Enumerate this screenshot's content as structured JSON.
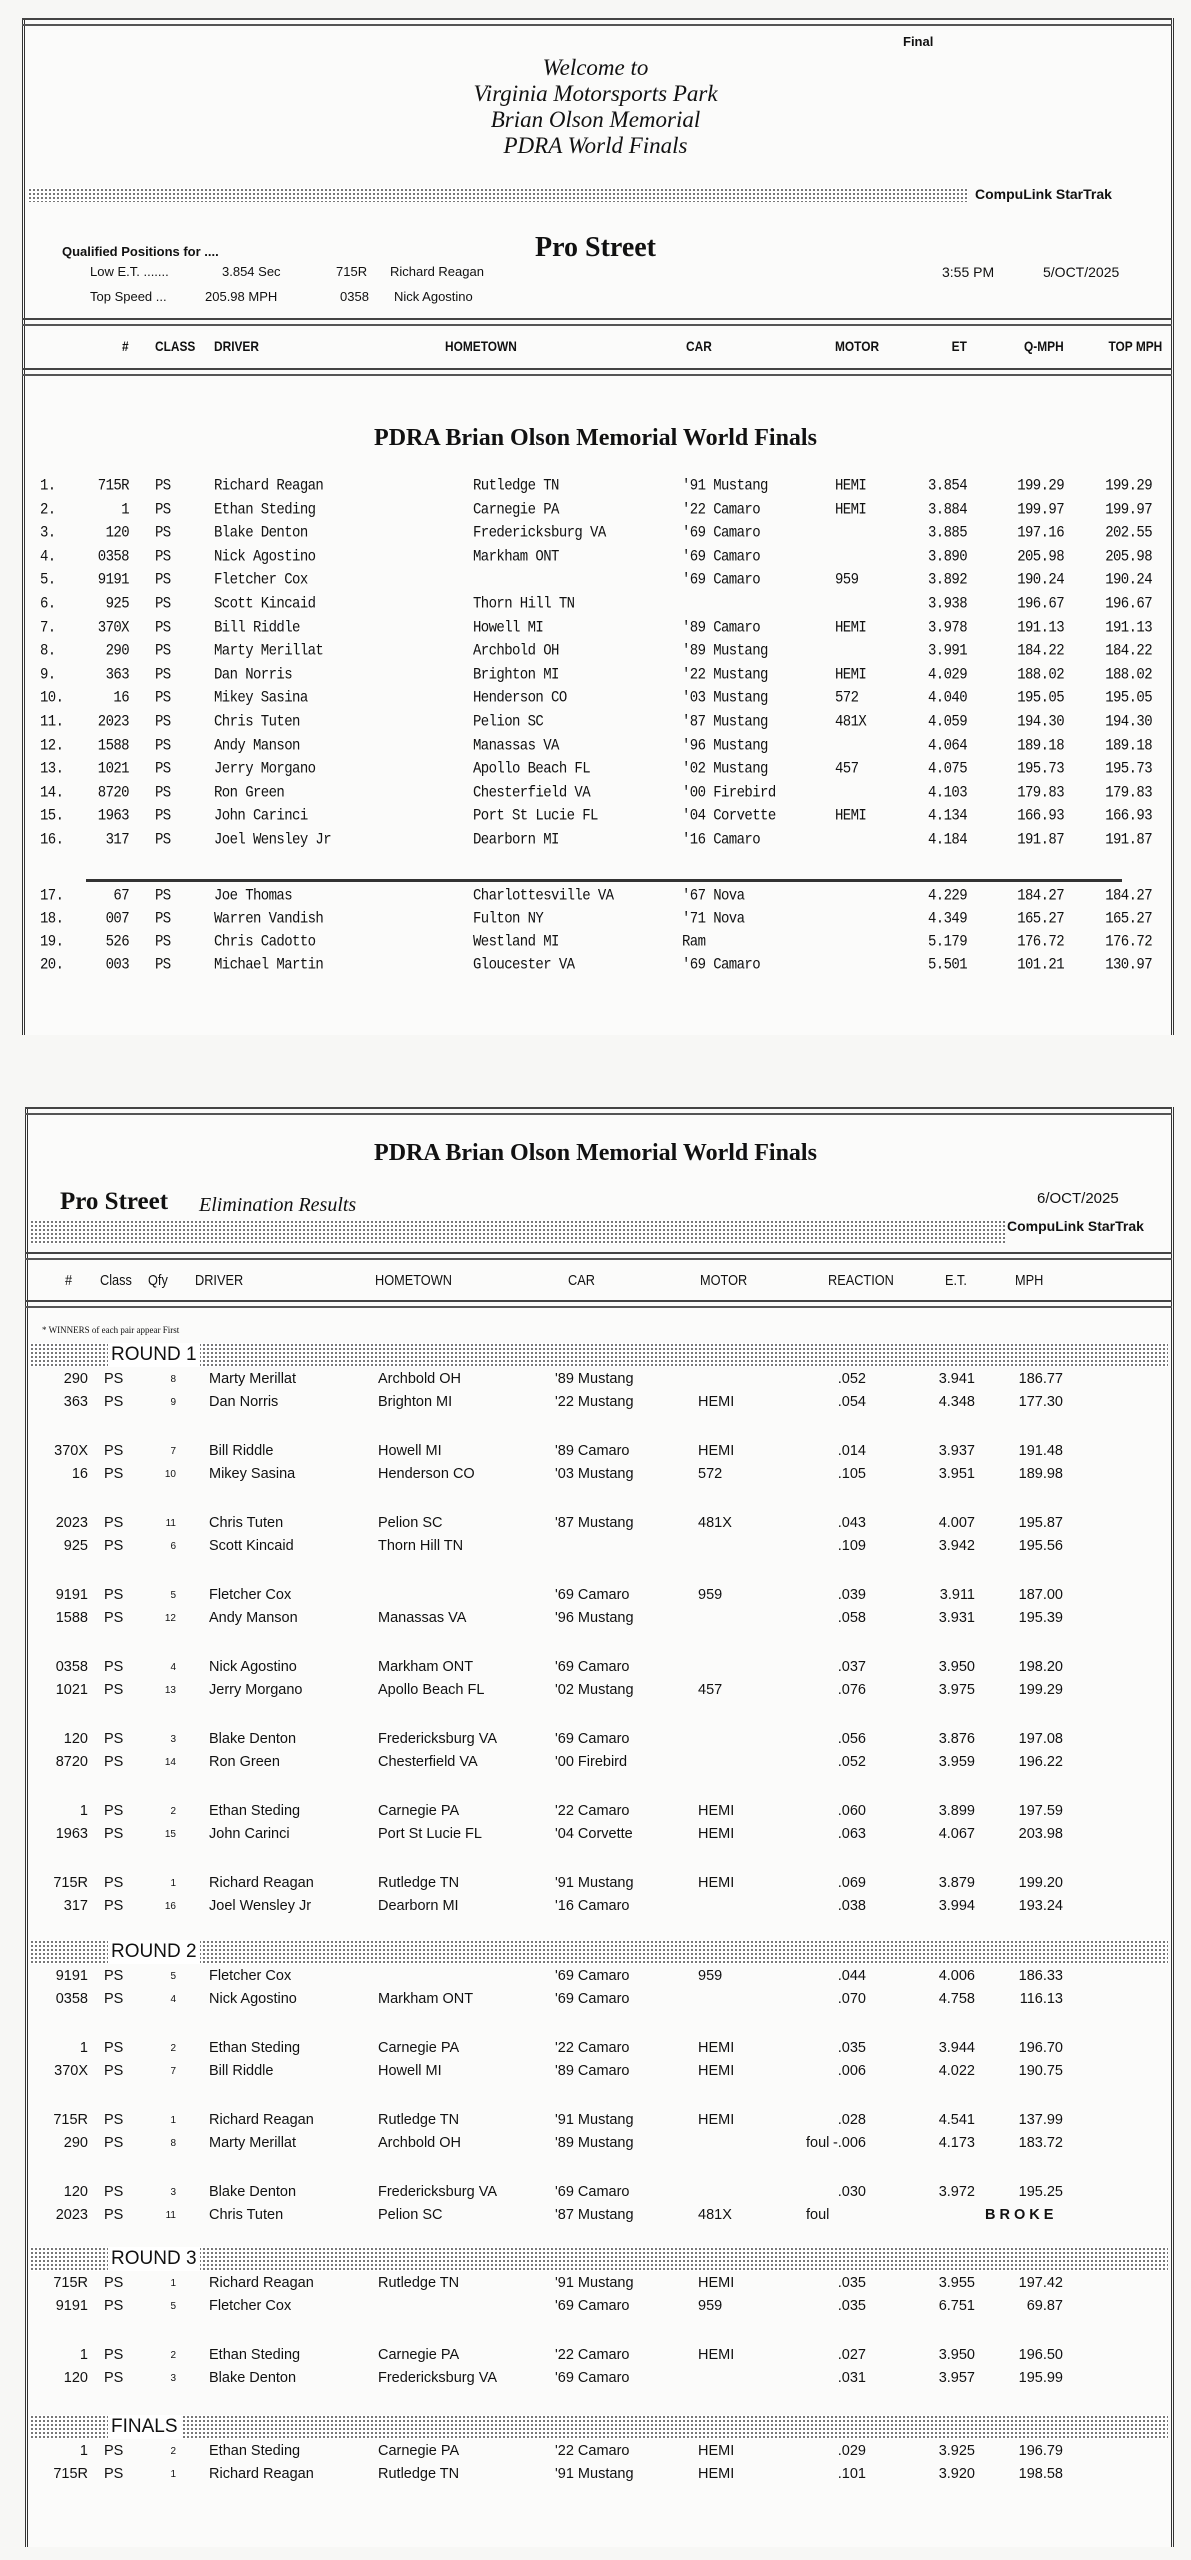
{
  "qualifying": {
    "status": "Final",
    "welcome_lines": [
      "Welcome to",
      "Virginia Motorsports Park",
      "Brian Olson Memorial",
      "PDRA World Finals"
    ],
    "software": "CompuLink  StarTrak",
    "class_title": "Pro Street",
    "qualified_label": "Qualified Positions for ....",
    "low_et": {
      "label": "Low E.T. .......",
      "value": "3.854 Sec",
      "num": "715R",
      "driver": "Richard Reagan"
    },
    "top_speed": {
      "label": "Top Speed ...",
      "value": "205.98 MPH",
      "num": "0358",
      "driver": "Nick Agostino"
    },
    "time": "3:55 PM",
    "date": "5/OCT/2025",
    "columns": [
      "#",
      "CLASS",
      "DRIVER",
      "HOMETOWN",
      "CAR",
      "MOTOR",
      "ET",
      "Q-MPH",
      "TOP MPH"
    ],
    "event_title": "PDRA Brian Olson Memorial World Finals",
    "rows": [
      {
        "pos": "1.",
        "num": "715R",
        "cls": "PS",
        "driver": "Richard Reagan",
        "hometown": "Rutledge  TN",
        "car": "'91 Mustang",
        "motor": "HEMI",
        "et": "3.854",
        "qmph": "199.29",
        "top": "199.29"
      },
      {
        "pos": "2.",
        "num": "1",
        "cls": "PS",
        "driver": "Ethan Steding",
        "hometown": "Carnegie  PA",
        "car": "'22 Camaro",
        "motor": "HEMI",
        "et": "3.884",
        "qmph": "199.97",
        "top": "199.97"
      },
      {
        "pos": "3.",
        "num": "120",
        "cls": "PS",
        "driver": "Blake Denton",
        "hometown": "Fredericksburg  VA",
        "car": "'69 Camaro",
        "motor": "",
        "et": "3.885",
        "qmph": "197.16",
        "top": "202.55"
      },
      {
        "pos": "4.",
        "num": "0358",
        "cls": "PS",
        "driver": "Nick Agostino",
        "hometown": "Markham  ONT",
        "car": "'69 Camaro",
        "motor": "",
        "et": "3.890",
        "qmph": "205.98",
        "top": "205.98"
      },
      {
        "pos": "5.",
        "num": "9191",
        "cls": "PS",
        "driver": "Fletcher Cox",
        "hometown": "",
        "car": "'69 Camaro",
        "motor": "959",
        "et": "3.892",
        "qmph": "190.24",
        "top": "190.24"
      },
      {
        "pos": "6.",
        "num": "925",
        "cls": "PS",
        "driver": "Scott Kincaid",
        "hometown": "Thorn Hill  TN",
        "car": "",
        "motor": "",
        "et": "3.938",
        "qmph": "196.67",
        "top": "196.67"
      },
      {
        "pos": "7.",
        "num": "370X",
        "cls": "PS",
        "driver": "Bill Riddle",
        "hometown": "Howell  MI",
        "car": "'89 Camaro",
        "motor": "HEMI",
        "et": "3.978",
        "qmph": "191.13",
        "top": "191.13"
      },
      {
        "pos": "8.",
        "num": "290",
        "cls": "PS",
        "driver": "Marty Merillat",
        "hometown": "Archbold  OH",
        "car": "'89 Mustang",
        "motor": "",
        "et": "3.991",
        "qmph": "184.22",
        "top": "184.22"
      },
      {
        "pos": "9.",
        "num": "363",
        "cls": "PS",
        "driver": "Dan Norris",
        "hometown": "Brighton  MI",
        "car": "'22 Mustang",
        "motor": "HEMI",
        "et": "4.029",
        "qmph": "188.02",
        "top": "188.02"
      },
      {
        "pos": "10.",
        "num": "16",
        "cls": "PS",
        "driver": "Mikey Sasina",
        "hometown": "Henderson  CO",
        "car": "'03 Mustang",
        "motor": "572",
        "et": "4.040",
        "qmph": "195.05",
        "top": "195.05"
      },
      {
        "pos": "11.",
        "num": "2023",
        "cls": "PS",
        "driver": "Chris Tuten",
        "hometown": "Pelion  SC",
        "car": "'87 Mustang",
        "motor": "481X",
        "et": "4.059",
        "qmph": "194.30",
        "top": "194.30"
      },
      {
        "pos": "12.",
        "num": "1588",
        "cls": "PS",
        "driver": "Andy Manson",
        "hometown": "Manassas  VA",
        "car": "'96 Mustang",
        "motor": "",
        "et": "4.064",
        "qmph": "189.18",
        "top": "189.18"
      },
      {
        "pos": "13.",
        "num": "1021",
        "cls": "PS",
        "driver": "Jerry Morgano",
        "hometown": "Apollo Beach  FL",
        "car": "'02 Mustang",
        "motor": "457",
        "et": "4.075",
        "qmph": "195.73",
        "top": "195.73"
      },
      {
        "pos": "14.",
        "num": "8720",
        "cls": "PS",
        "driver": "Ron Green",
        "hometown": "Chesterfield  VA",
        "car": "'00 Firebird",
        "motor": "",
        "et": "4.103",
        "qmph": "179.83",
        "top": "179.83"
      },
      {
        "pos": "15.",
        "num": "1963",
        "cls": "PS",
        "driver": "John Carinci",
        "hometown": "Port St Lucie  FL",
        "car": "'04 Corvette",
        "motor": "HEMI",
        "et": "4.134",
        "qmph": "166.93",
        "top": "166.93"
      },
      {
        "pos": "16.",
        "num": "317",
        "cls": "PS",
        "driver": "Joel Wensley Jr",
        "hometown": "Dearborn  MI",
        "car": "'16 Camaro",
        "motor": "",
        "et": "4.184",
        "qmph": "191.87",
        "top": "191.87"
      },
      {
        "pos": "17.",
        "num": "67",
        "cls": "PS",
        "driver": "Joe Thomas",
        "hometown": "Charlottesville  VA",
        "car": "'67 Nova",
        "motor": "",
        "et": "4.229",
        "qmph": "184.27",
        "top": "184.27"
      },
      {
        "pos": "18.",
        "num": "007",
        "cls": "PS",
        "driver": "Warren Vandish",
        "hometown": "Fulton  NY",
        "car": "'71 Nova",
        "motor": "",
        "et": "4.349",
        "qmph": "165.27",
        "top": "165.27"
      },
      {
        "pos": "19.",
        "num": "526",
        "cls": "PS",
        "driver": "Chris Cadotto",
        "hometown": "Westland  MI",
        "car": "Ram",
        "motor": "",
        "et": "5.179",
        "qmph": "176.72",
        "top": "176.72"
      },
      {
        "pos": "20.",
        "num": "003",
        "cls": "PS",
        "driver": "Michael Martin",
        "hometown": "Gloucester  VA",
        "car": "'69 Camaro",
        "motor": "",
        "et": "5.501",
        "qmph": "101.21",
        "top": "130.97"
      }
    ]
  },
  "eliminations": {
    "event_title": "PDRA Brian Olson Memorial World Finals",
    "class_title": "Pro Street",
    "subtitle": "Elimination Results",
    "date": "6/OCT/2025",
    "software": "CompuLink  StarTrak",
    "columns": [
      "#",
      "Class",
      "Qfy",
      "DRIVER",
      "HOMETOWN",
      "CAR",
      "MOTOR",
      "REACTION",
      "E.T.",
      "MPH"
    ],
    "note": "* WINNERS of each pair appear First",
    "rounds": [
      {
        "label": "ROUND 1",
        "pairs": [
          [
            {
              "num": "290",
              "cls": "PS",
              "qfy": "8",
              "driver": "Marty Merillat",
              "hometown": "Archbold OH",
              "car": "'89 Mustang",
              "motor": "",
              "foul": "",
              "rt": ".052",
              "et": "3.941",
              "mph": "186.77"
            },
            {
              "num": "363",
              "cls": "PS",
              "qfy": "9",
              "driver": "Dan Norris",
              "hometown": "Brighton  MI",
              "car": "'22 Mustang",
              "motor": "HEMI",
              "foul": "",
              "rt": ".054",
              "et": "4.348",
              "mph": "177.30"
            }
          ],
          [
            {
              "num": "370X",
              "cls": "PS",
              "qfy": "7",
              "driver": "Bill Riddle",
              "hometown": "Howell  MI",
              "car": "'89 Camaro",
              "motor": "HEMI",
              "foul": "",
              "rt": ".014",
              "et": "3.937",
              "mph": "191.48"
            },
            {
              "num": "16",
              "cls": "PS",
              "qfy": "10",
              "driver": "Mikey Sasina",
              "hometown": "Henderson CO",
              "car": "'03 Mustang",
              "motor": "572",
              "foul": "",
              "rt": ".105",
              "et": "3.951",
              "mph": "189.98"
            }
          ],
          [
            {
              "num": "2023",
              "cls": "PS",
              "qfy": "11",
              "driver": "Chris Tuten",
              "hometown": "Pelion  SC",
              "car": "'87 Mustang",
              "motor": "481X",
              "foul": "",
              "rt": ".043",
              "et": "4.007",
              "mph": "195.87"
            },
            {
              "num": "925",
              "cls": "PS",
              "qfy": "6",
              "driver": "Scott Kincaid",
              "hometown": "Thorn Hill  TN",
              "car": "",
              "motor": "",
              "foul": "",
              "rt": ".109",
              "et": "3.942",
              "mph": "195.56"
            }
          ],
          [
            {
              "num": "9191",
              "cls": "PS",
              "qfy": "5",
              "driver": "Fletcher Cox",
              "hometown": "",
              "car": "'69 Camaro",
              "motor": "959",
              "foul": "",
              "rt": ".039",
              "et": "3.911",
              "mph": "187.00"
            },
            {
              "num": "1588",
              "cls": "PS",
              "qfy": "12",
              "driver": "Andy Manson",
              "hometown": "Manassas  VA",
              "car": "'96 Mustang",
              "motor": "",
              "foul": "",
              "rt": ".058",
              "et": "3.931",
              "mph": "195.39"
            }
          ],
          [
            {
              "num": "0358",
              "cls": "PS",
              "qfy": "4",
              "driver": "Nick Agostino",
              "hometown": "Markham  ONT",
              "car": "'69 Camaro",
              "motor": "",
              "foul": "",
              "rt": ".037",
              "et": "3.950",
              "mph": "198.20"
            },
            {
              "num": "1021",
              "cls": "PS",
              "qfy": "13",
              "driver": "Jerry Morgano",
              "hometown": "Apollo Beach  FL",
              "car": "'02 Mustang",
              "motor": "457",
              "foul": "",
              "rt": ".076",
              "et": "3.975",
              "mph": "199.29"
            }
          ],
          [
            {
              "num": "120",
              "cls": "PS",
              "qfy": "3",
              "driver": "Blake Denton",
              "hometown": "Fredericksburg  VA",
              "car": "'69 Camaro",
              "motor": "",
              "foul": "",
              "rt": ".056",
              "et": "3.876",
              "mph": "197.08"
            },
            {
              "num": "8720",
              "cls": "PS",
              "qfy": "14",
              "driver": "Ron Green",
              "hometown": "Chesterfield  VA",
              "car": "'00 Firebird",
              "motor": "",
              "foul": "",
              "rt": ".052",
              "et": "3.959",
              "mph": "196.22"
            }
          ],
          [
            {
              "num": "1",
              "cls": "PS",
              "qfy": "2",
              "driver": "Ethan Steding",
              "hometown": "Carnegie  PA",
              "car": "'22 Camaro",
              "motor": "HEMI",
              "foul": "",
              "rt": ".060",
              "et": "3.899",
              "mph": "197.59"
            },
            {
              "num": "1963",
              "cls": "PS",
              "qfy": "15",
              "driver": "John Carinci",
              "hometown": "Port St Lucie  FL",
              "car": "'04 Corvette",
              "motor": "HEMI",
              "foul": "",
              "rt": ".063",
              "et": "4.067",
              "mph": "203.98"
            }
          ],
          [
            {
              "num": "715R",
              "cls": "PS",
              "qfy": "1",
              "driver": "Richard Reagan",
              "hometown": "Rutledge  TN",
              "car": "'91 Mustang",
              "motor": "HEMI",
              "foul": "",
              "rt": ".069",
              "et": "3.879",
              "mph": "199.20"
            },
            {
              "num": "317",
              "cls": "PS",
              "qfy": "16",
              "driver": "Joel Wensley Jr",
              "hometown": "Dearborn  MI",
              "car": "'16 Camaro",
              "motor": "",
              "foul": "",
              "rt": ".038",
              "et": "3.994",
              "mph": "193.24"
            }
          ]
        ]
      },
      {
        "label": "ROUND 2",
        "pairs": [
          [
            {
              "num": "9191",
              "cls": "PS",
              "qfy": "5",
              "driver": "Fletcher Cox",
              "hometown": "",
              "car": "'69 Camaro",
              "motor": "959",
              "foul": "",
              "rt": ".044",
              "et": "4.006",
              "mph": "186.33"
            },
            {
              "num": "0358",
              "cls": "PS",
              "qfy": "4",
              "driver": "Nick Agostino",
              "hometown": "Markham  ONT",
              "car": "'69 Camaro",
              "motor": "",
              "foul": "",
              "rt": ".070",
              "et": "4.758",
              "mph": "116.13"
            }
          ],
          [
            {
              "num": "1",
              "cls": "PS",
              "qfy": "2",
              "driver": "Ethan Steding",
              "hometown": "Carnegie  PA",
              "car": "'22 Camaro",
              "motor": "HEMI",
              "foul": "",
              "rt": ".035",
              "et": "3.944",
              "mph": "196.70"
            },
            {
              "num": "370X",
              "cls": "PS",
              "qfy": "7",
              "driver": "Bill Riddle",
              "hometown": "Howell  MI",
              "car": "'89 Camaro",
              "motor": "HEMI",
              "foul": "",
              "rt": ".006",
              "et": "4.022",
              "mph": "190.75"
            }
          ],
          [
            {
              "num": "715R",
              "cls": "PS",
              "qfy": "1",
              "driver": "Richard Reagan",
              "hometown": "Rutledge  TN",
              "car": "'91 Mustang",
              "motor": "HEMI",
              "foul": "",
              "rt": ".028",
              "et": "4.541",
              "mph": "137.99"
            },
            {
              "num": "290",
              "cls": "PS",
              "qfy": "8",
              "driver": "Marty Merillat",
              "hometown": "Archbold  OH",
              "car": "'89 Mustang",
              "motor": "",
              "foul": "foul",
              "rt": "-.006",
              "et": "4.173",
              "mph": "183.72"
            }
          ],
          [
            {
              "num": "120",
              "cls": "PS",
              "qfy": "3",
              "driver": "Blake Denton",
              "hometown": "Fredericksburg  VA",
              "car": "'69 Camaro",
              "motor": "",
              "foul": "",
              "rt": ".030",
              "et": "3.972",
              "mph": "195.25"
            },
            {
              "num": "2023",
              "cls": "PS",
              "qfy": "11",
              "driver": "Chris Tuten",
              "hometown": "Pelion  SC",
              "car": "'87 Mustang",
              "motor": "481X",
              "foul": "foul",
              "rt": "",
              "et": "",
              "mph": "",
              "result": "B R O K E"
            }
          ]
        ]
      },
      {
        "label": "ROUND 3",
        "pairs": [
          [
            {
              "num": "715R",
              "cls": "PS",
              "qfy": "1",
              "driver": "Richard Reagan",
              "hometown": "Rutledge  TN",
              "car": "'91 Mustang",
              "motor": "HEMI",
              "foul": "",
              "rt": ".035",
              "et": "3.955",
              "mph": "197.42"
            },
            {
              "num": "9191",
              "cls": "PS",
              "qfy": "5",
              "driver": "Fletcher Cox",
              "hometown": "",
              "car": "'69 Camaro",
              "motor": "959",
              "foul": "",
              "rt": ".035",
              "et": "6.751",
              "mph": "69.87"
            }
          ],
          [
            {
              "num": "1",
              "cls": "PS",
              "qfy": "2",
              "driver": "Ethan Steding",
              "hometown": "Carnegie  PA",
              "car": "'22 Camaro",
              "motor": "HEMI",
              "foul": "",
              "rt": ".027",
              "et": "3.950",
              "mph": "196.50"
            },
            {
              "num": "120",
              "cls": "PS",
              "qfy": "3",
              "driver": "Blake Denton",
              "hometown": "Fredericksburg  VA",
              "car": "'69 Camaro",
              "motor": "",
              "foul": "",
              "rt": ".031",
              "et": "3.957",
              "mph": "195.99"
            }
          ]
        ]
      },
      {
        "label": "FINALS",
        "pairs": [
          [
            {
              "num": "1",
              "cls": "PS",
              "qfy": "2",
              "driver": "Ethan Steding",
              "hometown": "Carnegie  PA",
              "car": "'22 Camaro",
              "motor": "HEMI",
              "foul": "",
              "rt": ".029",
              "et": "3.925",
              "mph": "196.79"
            },
            {
              "num": "715R",
              "cls": "PS",
              "qfy": "1",
              "driver": "Richard Reagan",
              "hometown": "Rutledge  TN",
              "car": "'91 Mustang",
              "motor": "HEMI",
              "foul": "",
              "rt": ".101",
              "et": "3.920",
              "mph": "198.58"
            }
          ]
        ]
      }
    ]
  }
}
